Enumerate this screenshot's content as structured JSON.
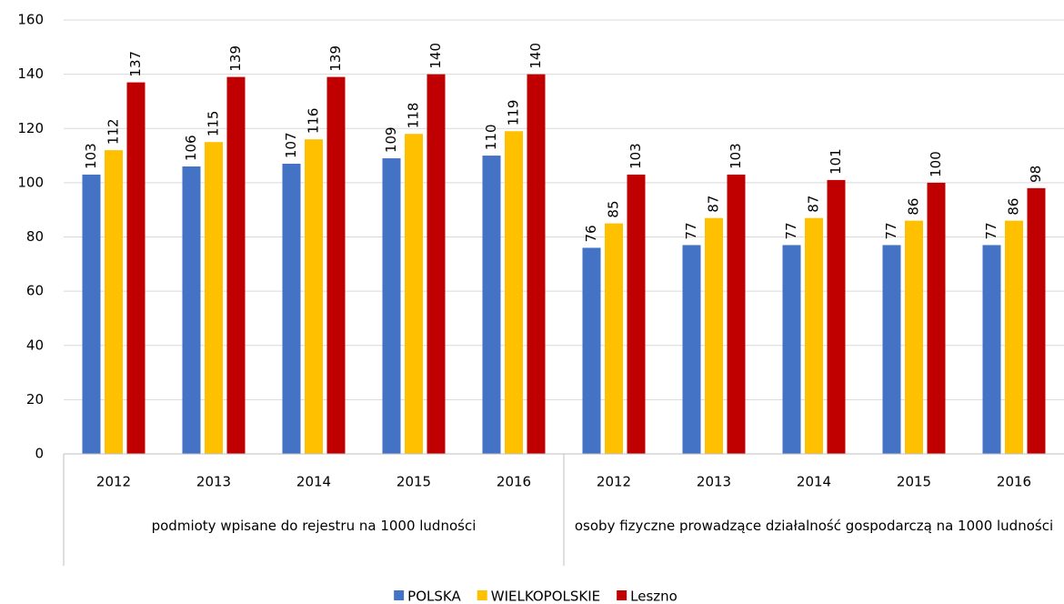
{
  "chart_data": {
    "type": "bar",
    "categories": [
      "2012",
      "2013",
      "2014",
      "2015",
      "2016",
      "2012",
      "2013",
      "2014",
      "2015",
      "2016"
    ],
    "groups": [
      "podmioty wpisane do rejestru na 1000 ludności",
      "osoby fizyczne prowadzące działalność gospodarczą na 1000 ludności"
    ],
    "series": [
      {
        "name": "POLSKA",
        "color": "#4472c4",
        "values": [
          103,
          106,
          107,
          109,
          110,
          76,
          77,
          77,
          77,
          77
        ]
      },
      {
        "name": "WIELKOPOLSKIE",
        "color": "#ffc000",
        "values": [
          112,
          115,
          116,
          118,
          119,
          85,
          87,
          87,
          86,
          86
        ]
      },
      {
        "name": "Leszno",
        "color": "#c00000",
        "values": [
          137,
          139,
          139,
          140,
          140,
          103,
          103,
          101,
          100,
          98
        ]
      }
    ],
    "ylim": [
      0,
      160
    ],
    "yticks": [
      0,
      20,
      40,
      60,
      80,
      100,
      120,
      140,
      160
    ],
    "grid": true,
    "legend": "bottom"
  }
}
